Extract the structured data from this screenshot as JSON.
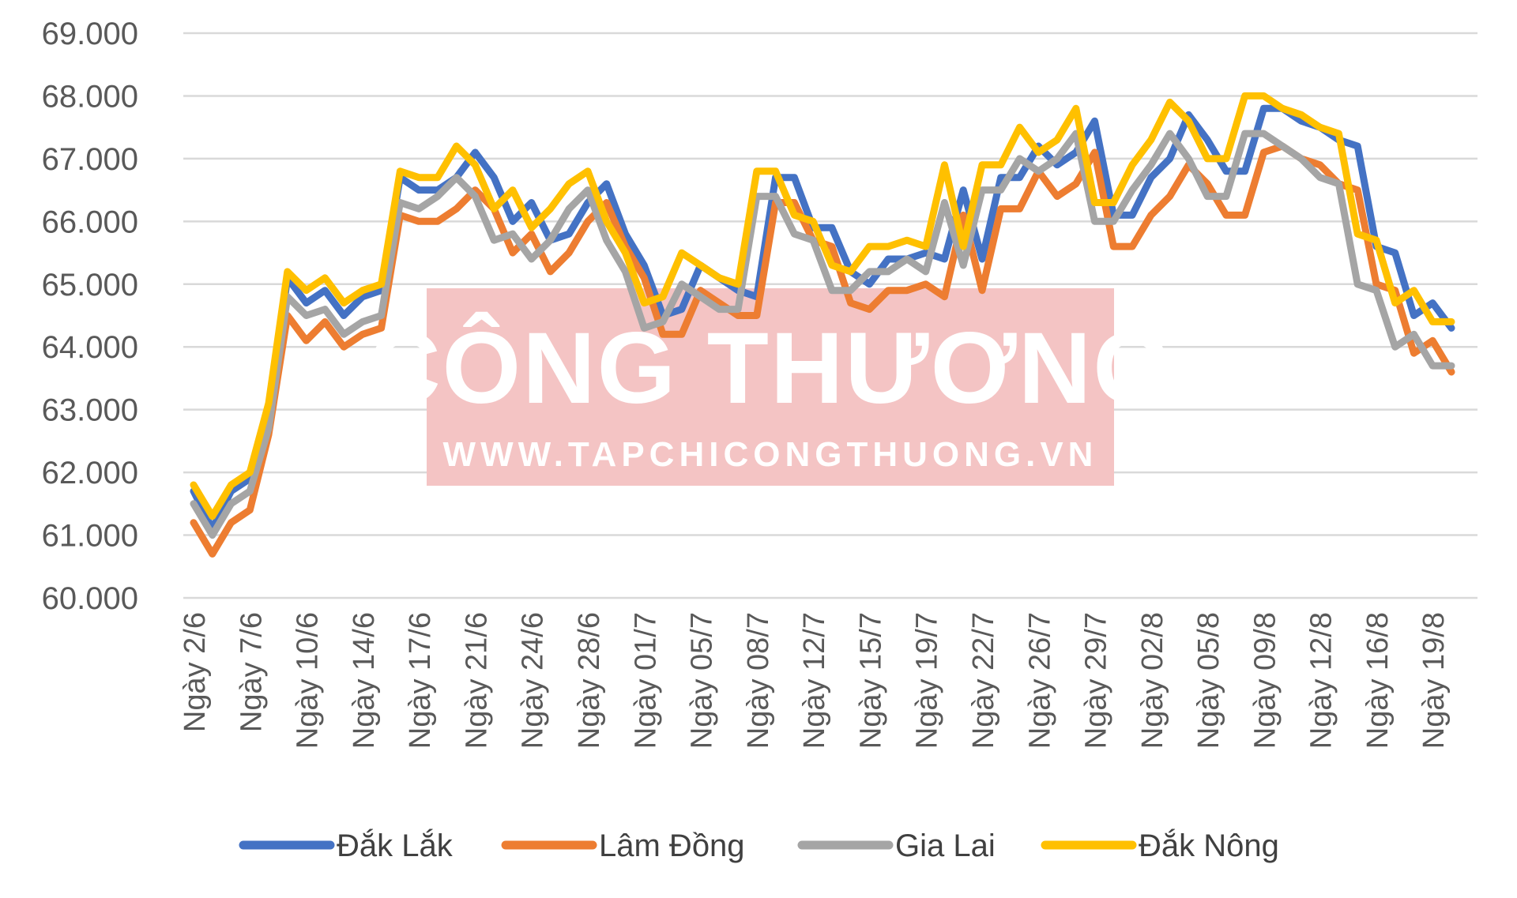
{
  "watermark": {
    "title": "CÔNG THƯƠNG",
    "url": "WWW.TAPCHICONGTHUONG.VN",
    "color": "#f4c4c4"
  },
  "chart_data": {
    "type": "line",
    "ylim": [
      60000,
      69000
    ],
    "yticks": [
      "60.000",
      "61.000",
      "62.000",
      "63.000",
      "64.000",
      "65.000",
      "66.000",
      "67.000",
      "68.000",
      "69.000"
    ],
    "grid": true,
    "legend_position": "bottom",
    "xtick_labels": [
      "Ngày 2/6",
      "Ngày 7/6",
      "Ngày 10/6",
      "Ngày 14/6",
      "Ngày 17/6",
      "Ngày 21/6",
      "Ngày 24/6",
      "Ngày 28/6",
      "Ngày 01/7",
      "Ngày 05/7",
      "Ngày 08/7",
      "Ngày 12/7",
      "Ngày 15/7",
      "Ngày 19/7",
      "Ngày 22/7",
      "Ngày 26/7",
      "Ngày 29/7",
      "Ngày 02/8",
      "Ngày 05/8",
      "Ngày 09/8",
      "Ngày 12/8",
      "Ngày 16/8",
      "Ngày 19/8"
    ],
    "xtick_step": 3,
    "series": [
      {
        "name": "Đắk Lắk",
        "color": "#4472c4",
        "values": [
          61700,
          61100,
          61700,
          61900,
          62900,
          65100,
          64700,
          64900,
          64500,
          64800,
          64900,
          66700,
          66500,
          66500,
          66700,
          67100,
          66700,
          66000,
          66300,
          65700,
          65800,
          66300,
          66600,
          65800,
          65300,
          64500,
          64600,
          65300,
          65100,
          64900,
          64800,
          66700,
          66700,
          65900,
          65900,
          65200,
          65000,
          65400,
          65400,
          65500,
          65400,
          66500,
          65400,
          66700,
          66700,
          67200,
          66900,
          67100,
          67600,
          66100,
          66100,
          66700,
          67000,
          67700,
          67300,
          66800,
          66800,
          67800,
          67800,
          67600,
          67500,
          67300,
          67200,
          65600,
          65500,
          64500,
          64700,
          64300
        ]
      },
      {
        "name": "Lâm Đồng",
        "color": "#ed7d31",
        "values": [
          61200,
          60700,
          61200,
          61400,
          62600,
          64500,
          64100,
          64400,
          64000,
          64200,
          64300,
          66100,
          66000,
          66000,
          66200,
          66500,
          66200,
          65500,
          65800,
          65200,
          65500,
          66000,
          66300,
          65600,
          65100,
          64200,
          64200,
          64900,
          64700,
          64500,
          64500,
          66300,
          66300,
          65700,
          65600,
          64700,
          64600,
          64900,
          64900,
          65000,
          64800,
          66100,
          64900,
          66200,
          66200,
          66800,
          66400,
          66600,
          67100,
          65600,
          65600,
          66100,
          66400,
          66900,
          66600,
          66100,
          66100,
          67100,
          67200,
          67000,
          66900,
          66600,
          66500,
          65000,
          64900,
          63900,
          64100,
          63600
        ]
      },
      {
        "name": "Gia Lai",
        "color": "#a5a5a5",
        "values": [
          61500,
          61000,
          61500,
          61700,
          62700,
          64800,
          64500,
          64600,
          64200,
          64400,
          64500,
          66300,
          66200,
          66400,
          66700,
          66400,
          65700,
          65800,
          65400,
          65700,
          66200,
          66500,
          65700,
          65200,
          64300,
          64400,
          65000,
          64800,
          64600,
          64600,
          66400,
          66400,
          65800,
          65700,
          64900,
          64900,
          65200,
          65200,
          65400,
          65200,
          66300,
          65300,
          66500,
          66500,
          67000,
          66800,
          67000,
          67400,
          66000,
          66000,
          66500,
          66900,
          67400,
          67000,
          66400,
          66400,
          67400,
          67400,
          67200,
          67000,
          66700,
          66600,
          65000,
          64900,
          64000,
          64200,
          63700,
          63700
        ]
      },
      {
        "name": "Đắk Nông",
        "color": "#ffc000",
        "values": [
          61800,
          61300,
          61800,
          62000,
          63100,
          65200,
          64900,
          65100,
          64700,
          64900,
          65000,
          66800,
          66700,
          66700,
          67200,
          66900,
          66200,
          66500,
          65900,
          66200,
          66600,
          66800,
          66000,
          65500,
          64700,
          64800,
          65500,
          65300,
          65100,
          65000,
          66800,
          66800,
          66100,
          66000,
          65300,
          65200,
          65600,
          65600,
          65700,
          65600,
          66900,
          65600,
          66900,
          66900,
          67500,
          67100,
          67300,
          67800,
          66300,
          66300,
          66900,
          67300,
          67900,
          67600,
          67000,
          67000,
          68000,
          68000,
          67800,
          67700,
          67500,
          67400,
          65800,
          65700,
          64700,
          64900,
          64400,
          64400
        ]
      }
    ]
  }
}
